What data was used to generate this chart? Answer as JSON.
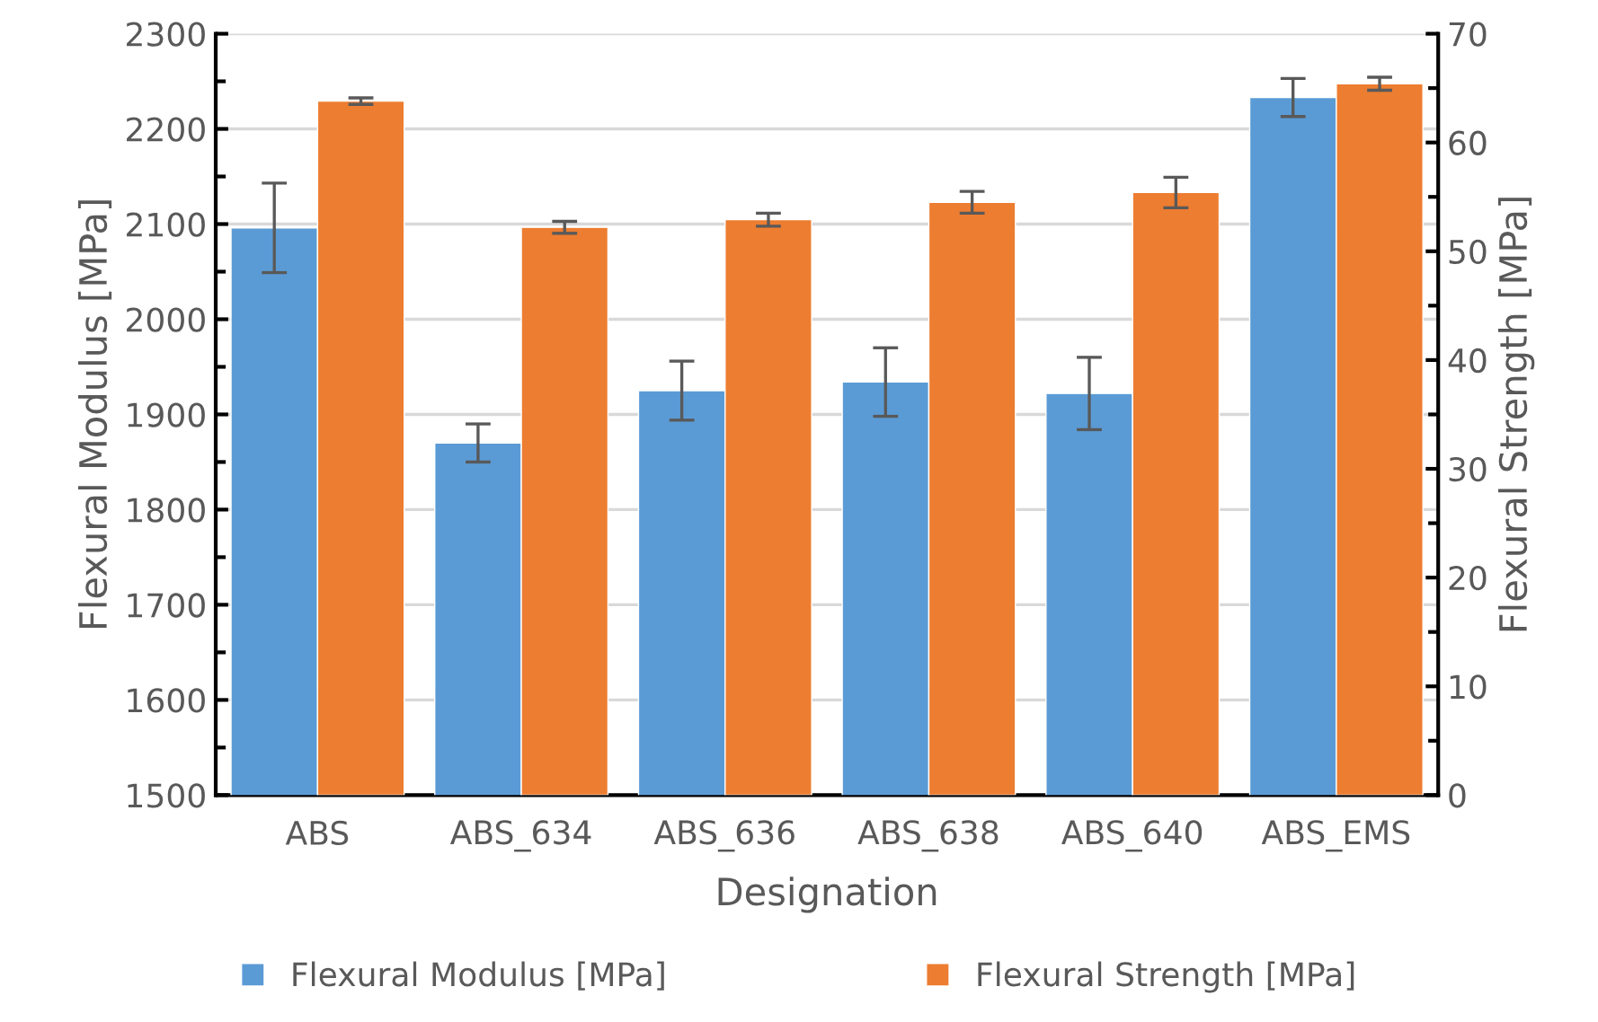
{
  "chart_data": {
    "type": "bar",
    "categories": [
      "ABS",
      "ABS_634",
      "ABS_636",
      "ABS_638",
      "ABS_640",
      "ABS_EMS"
    ],
    "xlabel": "Designation",
    "ylabel": "Flexural Modulus [MPa]",
    "y2label": "Flexural Strength [MPa]",
    "series": [
      {
        "name": "Flexural Modulus [MPa]",
        "color": "#5b9bd5",
        "values": [
          2096,
          1870,
          1925,
          1934,
          1922,
          2233
        ],
        "errors": [
          47,
          20,
          31,
          36,
          38,
          20
        ]
      },
      {
        "name": "Flexural Strength [MPa]",
        "color": "#ed7d31",
        "axis": "y2",
        "values": [
          63.8,
          52.2,
          52.9,
          54.5,
          55.4,
          65.4
        ],
        "errors": [
          0.3,
          0.55,
          0.6,
          1.0,
          1.4,
          0.6
        ]
      }
    ],
    "ylim": [
      1500,
      2300
    ],
    "yticks": [
      1500,
      1600,
      1700,
      1800,
      1900,
      2000,
      2100,
      2200,
      2300
    ],
    "y2lim": [
      0,
      70
    ],
    "y2ticks": [
      0,
      10,
      20,
      30,
      40,
      50,
      60,
      70
    ],
    "grid": "y",
    "legend": "bottom"
  }
}
